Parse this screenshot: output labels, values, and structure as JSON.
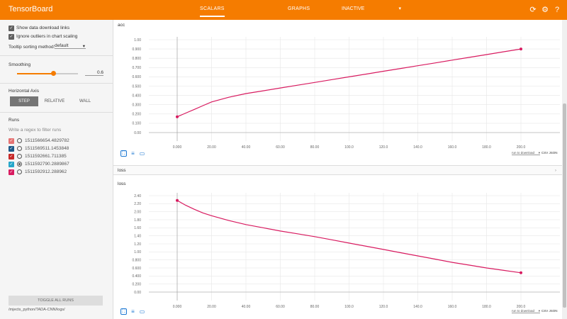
{
  "topbar": {
    "brand": "TensorBoard",
    "tabs": [
      {
        "label": "SCALARS"
      },
      {
        "label": "GRAPHS"
      }
    ],
    "inactive_label": "INACTIVE",
    "icons": [
      "refresh-icon",
      "gear-icon",
      "help-icon"
    ],
    "color": "#f57c00"
  },
  "sidebar": {
    "show_download_links": "Show data download links",
    "ignore_outliers": "Ignore outliers in chart scaling",
    "tooltip_label": "Tooltip sorting method:",
    "tooltip_value": "default",
    "smoothing_label": "Smoothing",
    "smoothing_value": "0.6",
    "smoothing_fraction": 0.6,
    "horizontal_axis_label": "Horizontal Axis",
    "axis_options": [
      "STEP",
      "RELATIVE",
      "WALL"
    ],
    "runs_label": "Runs",
    "filter_placeholder": "Write a regex to filter runs",
    "runs": [
      {
        "name": "1511566654.4829782",
        "color": "#e57373",
        "checked": true,
        "radio_on": false
      },
      {
        "name": "1511569511.1453848",
        "color": "#1e5b8a",
        "checked": true,
        "radio_on": false
      },
      {
        "name": "1511592661.711385",
        "color": "#c62828",
        "checked": true,
        "radio_on": false
      },
      {
        "name": "1511592790.2889867",
        "color": "#26a6c9",
        "checked": true,
        "radio_on": true
      },
      {
        "name": "1511592912.288962",
        "color": "#d81b60",
        "checked": true,
        "radio_on": false
      }
    ],
    "toggle_all": "TOGGLE ALL RUNS",
    "logdir": "/mjects_python/TADA-CNN/logs/"
  },
  "acc_card": {
    "title": "acc",
    "download_select": "run to download",
    "links": "CSV JSON"
  },
  "loss_section": {
    "header": "loss",
    "card_title": "loss",
    "download_select": "run to download",
    "links": "CSV JSON"
  },
  "chart_data": [
    {
      "type": "line",
      "title": "acc",
      "xlabel": "",
      "ylabel": "",
      "xlim": [
        0,
        200
      ],
      "ylim": [
        0,
        1
      ],
      "x_ticks": [
        "0.000",
        "20.00",
        "40.00",
        "60.00",
        "80.00",
        "100.0",
        "120.0",
        "140.0",
        "160.0",
        "180.0",
        "200.0"
      ],
      "y_ticks": [
        "0.00",
        "0.100",
        "0.200",
        "0.300",
        "0.400",
        "0.500",
        "0.600",
        "0.700",
        "0.800",
        "0.900",
        "1.00"
      ],
      "grid": true,
      "series": [
        {
          "color": "#d81b60",
          "x": [
            0,
            5,
            10,
            15,
            20,
            30,
            40,
            50,
            60,
            70,
            80,
            90,
            100,
            110,
            120,
            130,
            140,
            150,
            160,
            170,
            180,
            190,
            200
          ],
          "y": [
            0.17,
            0.21,
            0.25,
            0.29,
            0.33,
            0.38,
            0.42,
            0.45,
            0.48,
            0.51,
            0.54,
            0.57,
            0.6,
            0.63,
            0.66,
            0.69,
            0.72,
            0.75,
            0.78,
            0.81,
            0.84,
            0.87,
            0.9
          ]
        }
      ]
    },
    {
      "type": "line",
      "title": "loss",
      "xlabel": "",
      "ylabel": "",
      "xlim": [
        0,
        200
      ],
      "ylim": [
        0,
        2.4
      ],
      "x_ticks": [
        "0.000",
        "20.00",
        "40.00",
        "60.00",
        "80.00",
        "100.0",
        "120.0",
        "140.0",
        "160.0",
        "180.0",
        "200.0"
      ],
      "y_ticks": [
        "0.00",
        "0.200",
        "0.400",
        "0.600",
        "0.800",
        "1.00",
        "1.20",
        "1.40",
        "1.60",
        "1.80",
        "2.00",
        "2.20",
        "2.40"
      ],
      "grid": true,
      "series": [
        {
          "color": "#d81b60",
          "x": [
            0,
            5,
            10,
            15,
            20,
            30,
            40,
            50,
            60,
            70,
            80,
            90,
            100,
            110,
            120,
            130,
            140,
            150,
            160,
            170,
            180,
            190,
            200
          ],
          "y": [
            2.28,
            2.16,
            2.06,
            1.97,
            1.9,
            1.78,
            1.68,
            1.6,
            1.52,
            1.45,
            1.38,
            1.3,
            1.22,
            1.14,
            1.06,
            0.98,
            0.9,
            0.82,
            0.74,
            0.67,
            0.6,
            0.54,
            0.48
          ]
        }
      ]
    }
  ]
}
